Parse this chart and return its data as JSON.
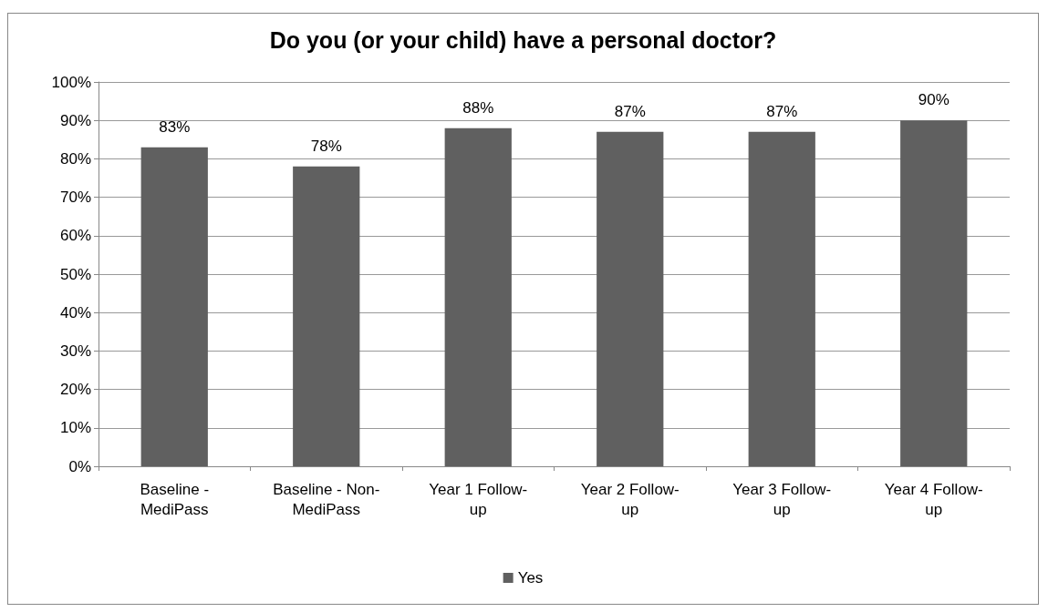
{
  "chart_data": {
    "type": "bar",
    "title": "Do you (or your child) have a personal doctor?",
    "categories": [
      "Baseline - MediPass",
      "Baseline - Non-MediPass",
      "Year 1 Follow-up",
      "Year 2 Follow-up",
      "Year 3 Follow-up",
      "Year 4 Follow-up"
    ],
    "series": [
      {
        "name": "Yes",
        "color": "#606060",
        "values": [
          83,
          78,
          88,
          87,
          87,
          90
        ],
        "value_labels": [
          "83%",
          "78%",
          "88%",
          "87%",
          "87%",
          "90%"
        ]
      }
    ],
    "ylim": [
      0,
      100
    ],
    "yticks": [
      {
        "value": 0,
        "label": "0%"
      },
      {
        "value": 10,
        "label": "10%"
      },
      {
        "value": 20,
        "label": "20%"
      },
      {
        "value": 30,
        "label": "30%"
      },
      {
        "value": 40,
        "label": "40%"
      },
      {
        "value": 50,
        "label": "50%"
      },
      {
        "value": 60,
        "label": "60%"
      },
      {
        "value": 70,
        "label": "70%"
      },
      {
        "value": 80,
        "label": "80%"
      },
      {
        "value": 90,
        "label": "90%"
      },
      {
        "value": 100,
        "label": "100%"
      }
    ],
    "grid": "y",
    "legend": "bottom"
  }
}
